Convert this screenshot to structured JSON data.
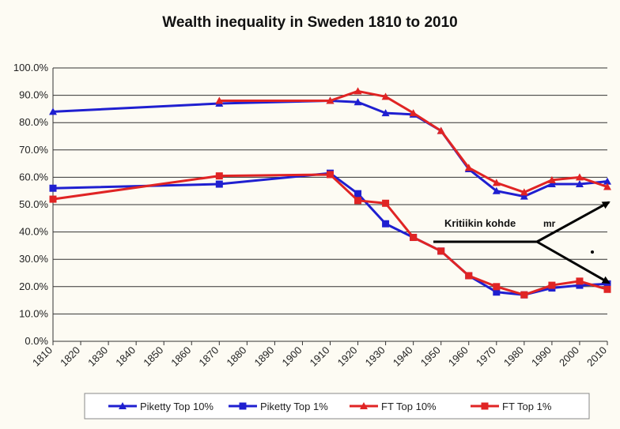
{
  "chart_data": {
    "type": "line",
    "title": "Wealth inequality  in Sweden 1810 to 2010",
    "xlabel": "",
    "ylabel": "",
    "ylim": [
      0,
      100
    ],
    "xlim": [
      1810,
      2010
    ],
    "y_ticks": [
      "0.0%",
      "10.0%",
      "20.0%",
      "30.0%",
      "40.0%",
      "50.0%",
      "60.0%",
      "70.0%",
      "80.0%",
      "90.0%",
      "100.0%"
    ],
    "x_ticks": [
      "1810",
      "1820",
      "1830",
      "1840",
      "1850",
      "1860",
      "1870",
      "1880",
      "1890",
      "1900",
      "1910",
      "1920",
      "1930",
      "1940",
      "1950",
      "1960",
      "1970",
      "1980",
      "1990",
      "2000",
      "2010"
    ],
    "grid": "horizontal",
    "legend_position": "bottom",
    "series": [
      {
        "name": "Piketty Top 10%",
        "color": "#1f1fd0",
        "marker": "triangle",
        "x": [
          1810,
          1870,
          1910,
          1920,
          1930,
          1940,
          1950,
          1960,
          1970,
          1980,
          1990,
          2000,
          2010
        ],
        "values": [
          84,
          87,
          88,
          87.5,
          83.5,
          83,
          77,
          63,
          55,
          53,
          57.5,
          57.5,
          58.5
        ]
      },
      {
        "name": "Piketty Top 1%",
        "color": "#1f1fd0",
        "marker": "square",
        "x": [
          1810,
          1870,
          1910,
          1920,
          1930,
          1940,
          1950,
          1960,
          1970,
          1980,
          1990,
          2000,
          2010
        ],
        "values": [
          56,
          57.5,
          61.5,
          54,
          43,
          38,
          33,
          24,
          18,
          17,
          19.5,
          20.5,
          21
        ]
      },
      {
        "name": "FT Top 10%",
        "color": "#e02424",
        "marker": "triangle",
        "x": [
          1870,
          1910,
          1920,
          1930,
          1940,
          1950,
          1960,
          1970,
          1980,
          1990,
          2000,
          2010
        ],
        "values": [
          88,
          88,
          91.5,
          89.5,
          83.5,
          77,
          63.5,
          58,
          54.5,
          59,
          60,
          56.5
        ]
      },
      {
        "name": "FT Top 1%",
        "color": "#e02424",
        "marker": "square",
        "x": [
          1810,
          1870,
          1910,
          1920,
          1930,
          1940,
          1950,
          1960,
          1970,
          1980,
          1990,
          2000,
          2010
        ],
        "values": [
          52,
          60.5,
          61,
          51.5,
          50.5,
          38,
          33,
          24,
          20,
          17,
          20.5,
          22,
          19
        ]
      }
    ],
    "annotations": [
      {
        "text": "Kritiikin kohde",
        "note": "mr"
      }
    ]
  }
}
